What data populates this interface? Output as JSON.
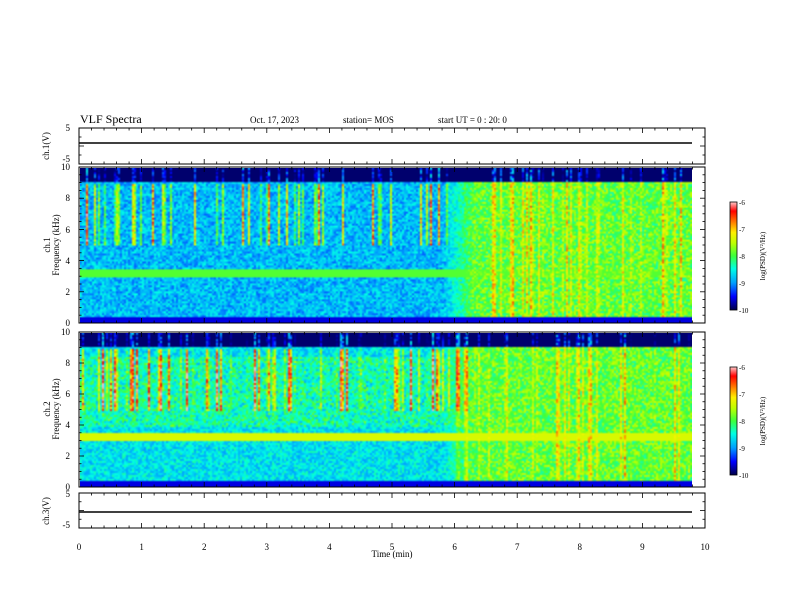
{
  "header": {
    "title": "VLF Spectra",
    "date": "Oct. 17, 2023",
    "station": "station= MOS",
    "start": "start  UT =   0 : 20: 0"
  },
  "colors": {
    "background": "#000060",
    "colormap": [
      "#000080",
      "#0000ff",
      "#00a0ff",
      "#00ffe0",
      "#40ff40",
      "#c0ff00",
      "#ffff00",
      "#ff8000",
      "#ff0000",
      "#ffb0b0"
    ]
  },
  "chart_data": {
    "type": "heatmap",
    "xlabel": "Time  (min)",
    "xlim": [
      0,
      10
    ],
    "x_ticks": [
      "0",
      "1",
      "2",
      "3",
      "4",
      "5",
      "6",
      "7",
      "8",
      "9",
      "10"
    ],
    "panels": [
      {
        "ylabel1": "ch.1(V)",
        "ylabel2": "",
        "yticks": [
          "5",
          "-5"
        ],
        "kind": "line",
        "value": 0
      },
      {
        "ylabel1": "ch.1",
        "ylabel2": "Frequency  (kHz)",
        "yticks": [
          "0",
          "2",
          "4",
          "6",
          "8",
          "10"
        ],
        "kind": "spec",
        "ylim": [
          0,
          10
        ],
        "colorbar": {
          "label": "log(PSD)(V²/Hz)",
          "ticks": [
            "-6",
            "-7",
            "-8",
            "-9",
            "-10"
          ],
          "range": [
            -10,
            -6
          ]
        }
      },
      {
        "ylabel1": "ch.2",
        "ylabel2": "Frequency  (kHz)",
        "yticks": [
          "0",
          "2",
          "4",
          "6",
          "8",
          "10"
        ],
        "kind": "spec",
        "ylim": [
          0,
          10
        ],
        "colorbar": {
          "label": "log(PSD)(V²/Hz)",
          "ticks": [
            "-6",
            "-7",
            "-8",
            "-9",
            "-10"
          ],
          "range": [
            -10,
            -6
          ]
        }
      },
      {
        "ylabel1": "ch.3(V)",
        "ylabel2": "",
        "yticks": [
          "5",
          "-5"
        ],
        "kind": "line",
        "value": 0
      }
    ],
    "data_end_min": 9.8,
    "transition_min": 5.8,
    "grid": false
  }
}
